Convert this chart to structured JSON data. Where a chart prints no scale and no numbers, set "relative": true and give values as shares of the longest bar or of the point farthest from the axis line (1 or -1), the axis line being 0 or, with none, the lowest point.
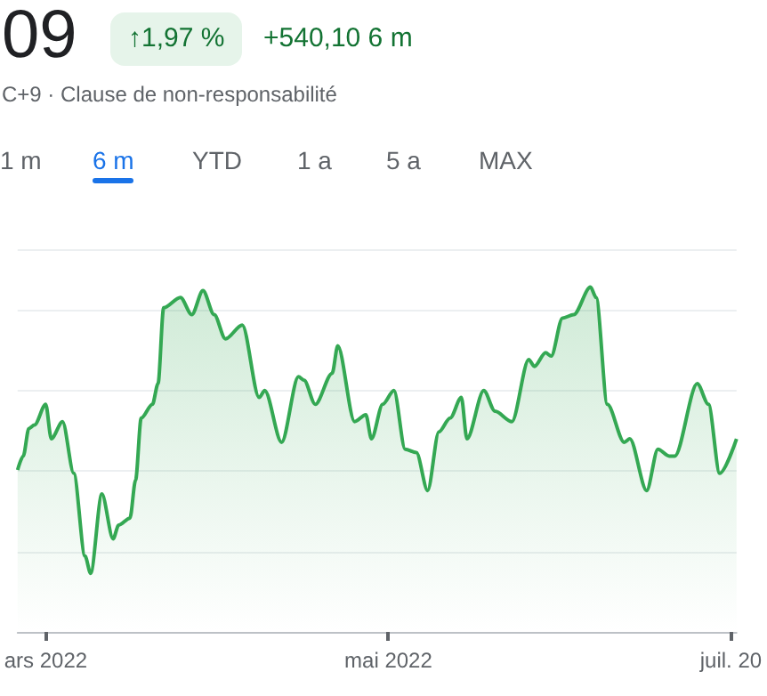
{
  "chart_data": {
    "type": "area",
    "title": "09",
    "subtitle": "↑1,97 %",
    "annotations": [
      "+540,10 6 m",
      "C+9 · Clause de non-responsabilité",
      "1 m",
      "6 m",
      "YTD",
      "1 a",
      "5 a",
      "MAX"
    ],
    "relative": true,
    "grid": "y",
    "color": "#34a853",
    "xlim": [
      "2022-02-24",
      "2022-07-02"
    ],
    "xticks": [
      {
        "value": "2022-03-01",
        "label": "ars 2022"
      },
      {
        "value": "2022-05-01",
        "label": "mai 2022"
      },
      {
        "value": "2022-07-01",
        "label": "juil. 20"
      }
    ],
    "x": [
      "2022-02-24",
      "2022-02-25",
      "2022-02-26",
      "2022-02-27",
      "2022-03-01",
      "2022-03-02",
      "2022-03-04",
      "2022-03-06",
      "2022-03-08",
      "2022-03-09",
      "2022-03-11",
      "2022-03-13",
      "2022-03-14",
      "2022-03-16",
      "2022-03-17",
      "2022-03-18",
      "2022-03-20",
      "2022-03-21",
      "2022-03-22",
      "2022-03-25",
      "2022-03-27",
      "2022-03-29",
      "2022-03-31",
      "2022-04-02",
      "2022-04-05",
      "2022-04-08",
      "2022-04-09",
      "2022-04-12",
      "2022-04-15",
      "2022-04-16",
      "2022-04-18",
      "2022-04-21",
      "2022-04-22",
      "2022-04-25",
      "2022-04-27",
      "2022-04-28",
      "2022-04-30",
      "2022-05-02",
      "2022-05-04",
      "2022-05-06",
      "2022-05-08",
      "2022-05-10",
      "2022-05-12",
      "2022-05-14",
      "2022-05-15",
      "2022-05-18",
      "2022-05-20",
      "2022-05-23",
      "2022-05-26",
      "2022-05-27",
      "2022-05-29",
      "2022-05-30",
      "2022-06-01",
      "2022-06-03",
      "2022-06-06",
      "2022-06-07",
      "2022-06-09",
      "2022-06-12",
      "2022-06-13",
      "2022-06-16",
      "2022-06-18",
      "2022-06-20",
      "2022-06-21",
      "2022-06-25",
      "2022-06-27",
      "2022-06-29",
      "2022-07-02"
    ],
    "values": [
      0.47,
      0.51,
      0.59,
      0.6,
      0.66,
      0.56,
      0.61,
      0.46,
      0.22,
      0.17,
      0.4,
      0.27,
      0.31,
      0.33,
      0.44,
      0.62,
      0.66,
      0.72,
      0.94,
      0.97,
      0.92,
      0.99,
      0.92,
      0.85,
      0.89,
      0.68,
      0.7,
      0.55,
      0.74,
      0.73,
      0.66,
      0.75,
      0.83,
      0.61,
      0.63,
      0.56,
      0.66,
      0.7,
      0.53,
      0.52,
      0.41,
      0.58,
      0.62,
      0.68,
      0.56,
      0.7,
      0.64,
      0.61,
      0.79,
      0.77,
      0.81,
      0.8,
      0.91,
      0.92,
      1,
      0.97,
      0.66,
      0.55,
      0.56,
      0.41,
      0.53,
      0.51,
      0.51,
      0.72,
      0.66,
      0.46,
      0.56
    ]
  }
}
